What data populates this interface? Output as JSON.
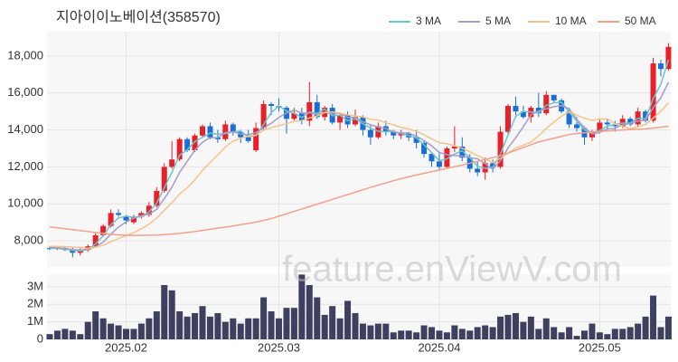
{
  "watermark": "feature.enViewV.com",
  "chart_data": [
    {
      "type": "candlestick",
      "title": "지아이이노베이션(358570)",
      "up_color": "#e8202a",
      "down_color": "#1a6fd4",
      "grid": true,
      "categories": [
        null,
        null,
        null,
        null,
        null,
        null,
        null,
        null,
        null,
        null,
        "2025.02",
        null,
        null,
        null,
        null,
        null,
        null,
        null,
        null,
        null,
        null,
        null,
        null,
        null,
        null,
        null,
        null,
        null,
        null,
        null,
        "2025.03",
        null,
        null,
        null,
        null,
        null,
        null,
        null,
        null,
        null,
        null,
        null,
        null,
        null,
        null,
        null,
        null,
        null,
        null,
        null,
        null,
        "2025.04",
        null,
        null,
        null,
        null,
        null,
        null,
        null,
        null,
        null,
        null,
        null,
        null,
        null,
        null,
        null,
        null,
        null,
        null,
        null,
        null,
        "2025.05",
        null,
        null,
        null,
        null,
        null,
        null,
        null,
        null,
        null
      ],
      "open": [
        7600,
        7550,
        7600,
        7500,
        7350,
        7500,
        7700,
        8300,
        8800,
        9500,
        9300,
        9000,
        9300,
        9400,
        9900,
        10700,
        12000,
        12400,
        13500,
        12900,
        13700,
        14200,
        13600,
        13500,
        14300,
        13900,
        13600,
        12900,
        14100,
        15400,
        15300,
        15200,
        14600,
        14900,
        14500,
        15500,
        14700,
        15200,
        14400,
        14800,
        14300,
        14700,
        14000,
        13600,
        14200,
        13900,
        13700,
        13800,
        13600,
        13300,
        12700,
        12300,
        12000,
        13000,
        13100,
        12500,
        11900,
        11700,
        12200,
        12000,
        13900,
        15300,
        15000,
        14700,
        15200,
        14900,
        15900,
        15600,
        15000,
        14300,
        14100,
        13600,
        13900,
        14400,
        14300,
        14200,
        14600,
        14300,
        15000,
        14500,
        17600,
        17300
      ],
      "high": [
        7700,
        7650,
        7700,
        7650,
        7600,
        7800,
        8400,
        8900,
        9700,
        9700,
        9400,
        9400,
        9600,
        10100,
        10900,
        12200,
        13400,
        13600,
        13600,
        13800,
        14300,
        14400,
        14000,
        14500,
        14400,
        14000,
        14000,
        14400,
        15600,
        15500,
        15700,
        15300,
        15200,
        15200,
        16600,
        15900,
        15300,
        15400,
        14900,
        15000,
        15100,
        14800,
        14300,
        14400,
        14500,
        14000,
        14000,
        13900,
        14000,
        13400,
        12800,
        12800,
        13100,
        14200,
        13600,
        12700,
        12300,
        12500,
        12400,
        14200,
        15400,
        15800,
        15300,
        15300,
        16000,
        16100,
        15900,
        15700,
        15200,
        14700,
        14200,
        14000,
        14600,
        14600,
        14500,
        14800,
        14700,
        15200,
        15100,
        17900,
        17800,
        18700
      ],
      "low": [
        7500,
        7500,
        7450,
        7100,
        7200,
        7400,
        7650,
        8200,
        8700,
        9300,
        8900,
        8900,
        9200,
        9300,
        9800,
        10600,
        11900,
        12300,
        12800,
        12800,
        13600,
        13500,
        13300,
        13400,
        13700,
        13300,
        13300,
        12800,
        14000,
        14800,
        15000,
        13800,
        14500,
        14300,
        14200,
        14600,
        14500,
        14300,
        14000,
        14100,
        14200,
        13700,
        13200,
        13500,
        13700,
        13500,
        13500,
        13400,
        13000,
        12500,
        12000,
        11800,
        11900,
        12800,
        12300,
        11700,
        11500,
        11300,
        11700,
        11900,
        13800,
        14800,
        14600,
        14400,
        14700,
        14800,
        15500,
        14900,
        14100,
        13900,
        13200,
        13400,
        13800,
        14000,
        13900,
        14100,
        14200,
        14200,
        14400,
        14400,
        16900,
        17200
      ],
      "close": [
        7550,
        7600,
        7500,
        7350,
        7500,
        7700,
        8300,
        8800,
        9500,
        9400,
        9100,
        9300,
        9500,
        9900,
        10700,
        12000,
        12400,
        13500,
        12900,
        13700,
        14200,
        13600,
        13500,
        14300,
        13900,
        13600,
        13400,
        14100,
        15400,
        15300,
        15200,
        14600,
        14900,
        14500,
        15500,
        14700,
        15200,
        14400,
        14800,
        14300,
        14700,
        14000,
        13600,
        14200,
        13900,
        13700,
        13800,
        13600,
        13300,
        12700,
        12300,
        12000,
        13000,
        13100,
        12500,
        11900,
        11700,
        12200,
        12000,
        13900,
        15300,
        15000,
        14700,
        15200,
        14900,
        15900,
        15600,
        15000,
        14300,
        14100,
        13600,
        13900,
        14400,
        14300,
        14200,
        14600,
        14300,
        15000,
        14500,
        17600,
        17300,
        18500
      ],
      "series": [
        {
          "name": "3 MA",
          "color": "#6cc5c9",
          "values": [
            7600,
            7580,
            7550,
            7480,
            7450,
            7520,
            7830,
            8270,
            8870,
            9230,
            9330,
            9270,
            9300,
            9570,
            10030,
            10870,
            11700,
            12630,
            12930,
            13370,
            13600,
            13830,
            13770,
            13800,
            13900,
            13930,
            13630,
            13700,
            14300,
            14930,
            15300,
            15030,
            14900,
            14670,
            14970,
            14900,
            15130,
            14770,
            14800,
            14500,
            14600,
            14330,
            14100,
            13930,
            13900,
            13930,
            13800,
            13700,
            13570,
            13200,
            12770,
            12330,
            12430,
            12700,
            12870,
            12500,
            12030,
            11930,
            11970,
            12700,
            13730,
            14730,
            15000,
            14970,
            14930,
            15330,
            15470,
            15500,
            14970,
            14470,
            14000,
            13870,
            13970,
            14200,
            14300,
            14370,
            14370,
            14630,
            14600,
            15700,
            16470,
            17800
          ]
        },
        {
          "name": "5 MA",
          "color": "#a89bc8",
          "values": [
            7650,
            7620,
            7580,
            7520,
            7500,
            7530,
            7670,
            7930,
            8360,
            8740,
            9020,
            9220,
            9360,
            9440,
            9700,
            10280,
            10900,
            11700,
            12300,
            12900,
            13340,
            13580,
            13580,
            13860,
            13900,
            13780,
            13740,
            13860,
            14100,
            14360,
            14680,
            14920,
            15080,
            14900,
            14940,
            14840,
            14960,
            14860,
            14920,
            14680,
            14680,
            14440,
            14280,
            14160,
            14080,
            13880,
            13840,
            13840,
            13660,
            13420,
            13140,
            12780,
            12660,
            12620,
            12580,
            12500,
            12440,
            12180,
            11860,
            12340,
            13020,
            13580,
            14180,
            14820,
            15020,
            15140,
            15260,
            15320,
            15140,
            14580,
            14120,
            13780,
            13860,
            14060,
            14080,
            14280,
            14360,
            14480,
            14520,
            15200,
            15740,
            16580
          ]
        },
        {
          "name": "10 MA",
          "color": "#f2c48a",
          "values": [
            7700,
            7690,
            7680,
            7660,
            7640,
            7590,
            7645,
            7755,
            7940,
            8120,
            8275,
            8445,
            8645,
            8900,
            9220,
            9650,
            10060,
            10530,
            10870,
            11300,
            11810,
            12240,
            12640,
            13080,
            13400,
            13560,
            13660,
            13720,
            13980,
            14130,
            14230,
            14330,
            14470,
            14500,
            14650,
            14760,
            14940,
            14970,
            14910,
            14810,
            14760,
            14700,
            14570,
            14540,
            14380,
            14280,
            14140,
            14060,
            13910,
            13750,
            13510,
            13310,
            13250,
            13140,
            13000,
            12820,
            12610,
            12420,
            12240,
            12460,
            12760,
            13010,
            13180,
            13340,
            13680,
            14080,
            14420,
            14750,
            14980,
            14800,
            14630,
            14520,
            14590,
            14600,
            14330,
            14200,
            14070,
            14170,
            14290,
            14640,
            15010,
            15470
          ]
        },
        {
          "name": "50 MA",
          "color": "#f2a08c",
          "values": [
            8750,
            8700,
            8650,
            8600,
            8550,
            8500,
            8450,
            8400,
            8350,
            8320,
            8300,
            8290,
            8290,
            8300,
            8310,
            8330,
            8360,
            8400,
            8450,
            8500,
            8560,
            8620,
            8680,
            8740,
            8800,
            8870,
            8940,
            9010,
            9100,
            9200,
            9330,
            9460,
            9590,
            9720,
            9850,
            9980,
            10110,
            10240,
            10370,
            10500,
            10630,
            10760,
            10890,
            11010,
            11130,
            11250,
            11360,
            11460,
            11560,
            11650,
            11740,
            11830,
            11920,
            12010,
            12100,
            12200,
            12300,
            12400,
            12500,
            12600,
            12750,
            12900,
            13050,
            13200,
            13350,
            13450,
            13550,
            13650,
            13750,
            13800,
            13850,
            13880,
            13910,
            13940,
            13970,
            14000,
            14020,
            14040,
            14060,
            14100,
            14150,
            14200
          ]
        }
      ],
      "ylim": [
        6580,
        19320
      ],
      "yticks": [
        {
          "value": 8000,
          "label": "8,000"
        },
        {
          "value": 10000,
          "label": "10,000"
        },
        {
          "value": 12000,
          "label": "12,000"
        },
        {
          "value": 14000,
          "label": "14,000"
        },
        {
          "value": 16000,
          "label": "16,000"
        },
        {
          "value": 18000,
          "label": "18,000"
        }
      ]
    },
    {
      "type": "bar",
      "color": "#3f3f60",
      "grid": true,
      "values": [
        300000,
        500000,
        600000,
        500000,
        300000,
        1000000,
        1600000,
        1200000,
        900000,
        800000,
        600000,
        600000,
        900000,
        1200000,
        1600000,
        3100000,
        2800000,
        1600000,
        1300000,
        1500000,
        1900000,
        1300000,
        1500000,
        1000000,
        1200000,
        900000,
        1200000,
        1200000,
        2400000,
        1600000,
        1200000,
        1800000,
        1800000,
        3700000,
        3100000,
        2400000,
        1400000,
        1900000,
        1200000,
        2200000,
        1500000,
        900000,
        800000,
        900000,
        900000,
        400000,
        500000,
        500000,
        400000,
        800000,
        700000,
        500000,
        400000,
        800000,
        600000,
        500000,
        700000,
        800000,
        700000,
        1300000,
        1400000,
        1500000,
        1000000,
        1300000,
        600000,
        1200000,
        700000,
        400000,
        700000,
        200000,
        500000,
        900000,
        400000,
        300000,
        600000,
        600000,
        700000,
        900000,
        1300000,
        2500000,
        700000,
        1300000
      ],
      "ylim": [
        0,
        3720000
      ],
      "yticks": [
        0,
        {
          "value": 1000000,
          "label": "1M"
        },
        {
          "value": 2000000,
          "label": "2M"
        },
        {
          "value": 3000000,
          "label": "3M"
        }
      ]
    }
  ]
}
